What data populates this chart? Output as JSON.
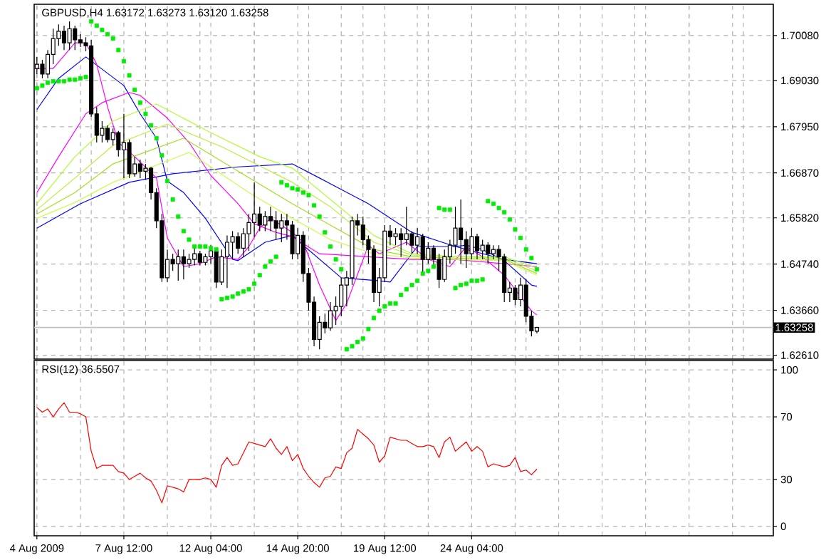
{
  "chart_data": [
    {
      "type": "candlestick",
      "title": "GBPUSD,H4  1.63172 1.63273 1.63120 1.63258",
      "categories": [
        null,
        null,
        null,
        null,
        null,
        null,
        null,
        null,
        null,
        null,
        null,
        null,
        null,
        null,
        null,
        null,
        null,
        null,
        null,
        null,
        null,
        null,
        null,
        null,
        null,
        null,
        null,
        null,
        null,
        null,
        null,
        null,
        null,
        null,
        null,
        null,
        null,
        null,
        null,
        null,
        null,
        null,
        null,
        null,
        null,
        null,
        null,
        null,
        null,
        null,
        null,
        null,
        null,
        null,
        null,
        null,
        null,
        null,
        null,
        null,
        null,
        null,
        null,
        null,
        null,
        null,
        null,
        null,
        null,
        null,
        null,
        null,
        null,
        null,
        null,
        null,
        null,
        null,
        null,
        null,
        null,
        null,
        null,
        null,
        null,
        null,
        null,
        null,
        null,
        null,
        null,
        null,
        null,
        null,
        null,
        null,
        null,
        null,
        null,
        null,
        null,
        null,
        null,
        null,
        null,
        null,
        null,
        null,
        null,
        null,
        null,
        null,
        null,
        null,
        null,
        null,
        null,
        null,
        null,
        null,
        null,
        null,
        null,
        null,
        null,
        null,
        null,
        null,
        null,
        null,
        null,
        null,
        null,
        null,
        null,
        null
      ],
      "tick_labels": "y",
      "ylim": [
        1.6252,
        1.7081
      ],
      "yticks": [
        {
          "value": 1.6261,
          "label": "1.62610"
        },
        {
          "value": 1.6366,
          "label": "1.63660"
        },
        {
          "value": 1.6474,
          "label": "1.64740"
        },
        {
          "value": 1.6582,
          "label": "1.65820"
        },
        {
          "value": 1.6687,
          "label": "1.66870"
        },
        {
          "value": 1.6795,
          "label": "1.67950"
        },
        {
          "value": 1.6903,
          "label": "1.69030"
        },
        {
          "value": 1.7008,
          "label": "1.70080"
        }
      ],
      "grid": true,
      "ref_lines": [
        {
          "axis": "y",
          "value": 1.63258,
          "label": "1.63258",
          "color": "#c0c0c0"
        }
      ],
      "ohlc": [
        [
          1.6931,
          1.6958,
          1.6918,
          1.6941
        ],
        [
          1.6941,
          1.6951,
          1.6908,
          1.6918
        ],
        [
          1.6918,
          1.6974,
          1.6908,
          1.6964
        ],
        [
          1.6964,
          1.7024,
          1.6941,
          1.7001
        ],
        [
          1.7001,
          1.7034,
          1.6984,
          1.7018
        ],
        [
          1.7018,
          1.7031,
          1.6974,
          1.6991
        ],
        [
          1.6991,
          1.7041,
          1.6974,
          1.7024
        ],
        [
          1.7024,
          1.7031,
          1.6974,
          1.6998
        ],
        [
          1.6998,
          1.7011,
          1.6981,
          1.6991
        ],
        [
          1.6991,
          1.7004,
          1.6971,
          1.6984
        ],
        [
          1.6984,
          1.6998,
          1.6818,
          1.6825
        ],
        [
          1.6825,
          1.6841,
          1.6758,
          1.6775
        ],
        [
          1.6775,
          1.6808,
          1.6758,
          1.6791
        ],
        [
          1.6791,
          1.6798,
          1.6758,
          1.6765
        ],
        [
          1.6765,
          1.6791,
          1.6751,
          1.6781
        ],
        [
          1.6781,
          1.6785,
          1.6725,
          1.6741
        ],
        [
          1.6741,
          1.6825,
          1.6675,
          1.6758
        ],
        [
          1.6758,
          1.6765,
          1.6675,
          1.6685
        ],
        [
          1.6685,
          1.6725,
          1.6678,
          1.6708
        ],
        [
          1.6708,
          1.6718,
          1.6675,
          1.6691
        ],
        [
          1.6691,
          1.6708,
          1.6671,
          1.6698
        ],
        [
          1.6698,
          1.6701,
          1.6625,
          1.6641
        ],
        [
          1.6641,
          1.6651,
          1.6558,
          1.6575
        ],
        [
          1.6575,
          1.6591,
          1.6432,
          1.6442
        ],
        [
          1.6442,
          1.6508,
          1.6432,
          1.6485
        ],
        [
          1.6485,
          1.6498,
          1.6458,
          1.6475
        ],
        [
          1.6475,
          1.6508,
          1.6435,
          1.6491
        ],
        [
          1.6491,
          1.6508,
          1.6438,
          1.6475
        ],
        [
          1.6475,
          1.6498,
          1.6465,
          1.6485
        ],
        [
          1.6485,
          1.6518,
          1.6471,
          1.6498
        ],
        [
          1.6498,
          1.6505,
          1.6471,
          1.6478
        ],
        [
          1.6478,
          1.6498,
          1.6471,
          1.6491
        ],
        [
          1.6491,
          1.6518,
          1.6475,
          1.6505
        ],
        [
          1.6505,
          1.6511,
          1.6418,
          1.6432
        ],
        [
          1.6432,
          1.6508,
          1.6425,
          1.6491
        ],
        [
          1.6491,
          1.6541,
          1.6418,
          1.6525
        ],
        [
          1.6525,
          1.6551,
          1.6485,
          1.6538
        ],
        [
          1.6538,
          1.6548,
          1.6498,
          1.6511
        ],
        [
          1.6511,
          1.6558,
          1.6491,
          1.6545
        ],
        [
          1.6545,
          1.6591,
          1.6505,
          1.6571
        ],
        [
          1.6571,
          1.6665,
          1.6538,
          1.6591
        ],
        [
          1.6591,
          1.6608,
          1.6551,
          1.6565
        ],
        [
          1.6565,
          1.6598,
          1.6551,
          1.6585
        ],
        [
          1.6585,
          1.6608,
          1.6551,
          1.6575
        ],
        [
          1.6575,
          1.6598,
          1.6531,
          1.6558
        ],
        [
          1.6558,
          1.6591,
          1.6525,
          1.6575
        ],
        [
          1.6575,
          1.6591,
          1.6531,
          1.6565
        ],
        [
          1.6565,
          1.6575,
          1.6485,
          1.6498
        ],
        [
          1.6498,
          1.6558,
          1.6485,
          1.6541
        ],
        [
          1.6541,
          1.6551,
          1.6432,
          1.6452
        ],
        [
          1.6452,
          1.6465,
          1.6365,
          1.6385
        ],
        [
          1.6385,
          1.6398,
          1.6282,
          1.6298
        ],
        [
          1.6298,
          1.6352,
          1.6275,
          1.6338
        ],
        [
          1.6338,
          1.6358,
          1.6312,
          1.6325
        ],
        [
          1.6325,
          1.6385,
          1.6318,
          1.6365
        ],
        [
          1.6365,
          1.6398,
          1.6332,
          1.6375
        ],
        [
          1.6375,
          1.6442,
          1.6352,
          1.6425
        ],
        [
          1.6425,
          1.6458,
          1.6375,
          1.6442
        ],
        [
          1.6442,
          1.6585,
          1.6425,
          1.6575
        ],
        [
          1.6575,
          1.6591,
          1.6541,
          1.6565
        ],
        [
          1.6565,
          1.6585,
          1.6518,
          1.6531
        ],
        [
          1.6531,
          1.6541,
          1.6475,
          1.6508
        ],
        [
          1.6508,
          1.6518,
          1.6385,
          1.6408
        ],
        [
          1.6408,
          1.6465,
          1.6375,
          1.6442
        ],
        [
          1.6442,
          1.6565,
          1.6432,
          1.6551
        ],
        [
          1.6551,
          1.6565,
          1.6518,
          1.6538
        ],
        [
          1.6538,
          1.6558,
          1.6518,
          1.6545
        ],
        [
          1.6545,
          1.6558,
          1.6491,
          1.6531
        ],
        [
          1.6531,
          1.6608,
          1.6518,
          1.6545
        ],
        [
          1.6545,
          1.6551,
          1.6498,
          1.6518
        ],
        [
          1.6518,
          1.6558,
          1.6498,
          1.6538
        ],
        [
          1.6538,
          1.6545,
          1.6452,
          1.6485
        ],
        [
          1.6485,
          1.6525,
          1.6475,
          1.6511
        ],
        [
          1.6511,
          1.6518,
          1.6465,
          1.6485
        ],
        [
          1.6485,
          1.6498,
          1.6418,
          1.6438
        ],
        [
          1.6438,
          1.6508,
          1.6432,
          1.6491
        ],
        [
          1.6491,
          1.6531,
          1.6475,
          1.6518
        ],
        [
          1.6518,
          1.6608,
          1.6498,
          1.6558
        ],
        [
          1.6558,
          1.6625,
          1.6475,
          1.6531
        ],
        [
          1.6531,
          1.6551,
          1.6465,
          1.6498
        ],
        [
          1.6498,
          1.6558,
          1.6485,
          1.6538
        ],
        [
          1.6538,
          1.6545,
          1.6485,
          1.6505
        ],
        [
          1.6505,
          1.6531,
          1.6485,
          1.6518
        ],
        [
          1.6518,
          1.6525,
          1.6475,
          1.6498
        ],
        [
          1.6498,
          1.6518,
          1.6485,
          1.6508
        ],
        [
          1.6508,
          1.6518,
          1.6458,
          1.6491
        ],
        [
          1.6491,
          1.6498,
          1.6385,
          1.6408
        ],
        [
          1.6408,
          1.6432,
          1.6385,
          1.6418
        ],
        [
          1.6418,
          1.6425,
          1.6378,
          1.6391
        ],
        [
          1.6391,
          1.6442,
          1.6375,
          1.6425
        ],
        [
          1.6425,
          1.6438,
          1.6338,
          1.6352
        ],
        [
          1.6352,
          1.6365,
          1.6305,
          1.6318
        ],
        [
          1.63172,
          1.63273,
          1.6312,
          1.63258
        ],
        null,
        null,
        null,
        null,
        null,
        null,
        null,
        null,
        null,
        null,
        null,
        null,
        null,
        null,
        null,
        null,
        null,
        null,
        null,
        null,
        null,
        null,
        null,
        null,
        null,
        null,
        null,
        null,
        null,
        null,
        null,
        null,
        null,
        null,
        null,
        null,
        null,
        null,
        null,
        null,
        null,
        null,
        null
      ],
      "series": [
        {
          "type": "line",
          "color": "#0000ff",
          "values": [
            1.6835,
            null,
            null,
            null,
            1.6908,
            null,
            null,
            null,
            null,
            1.6958,
            null,
            null,
            null,
            null,
            null,
            null,
            1.6891,
            null,
            null,
            1.6825,
            null,
            null,
            1.6768,
            null,
            1.6668,
            null,
            null,
            1.6641,
            null,
            null,
            null,
            1.6581,
            null,
            null,
            null,
            null,
            1.6485,
            1.6482,
            null,
            null,
            null,
            null,
            1.6525,
            null,
            null,
            null,
            null,
            1.6541,
            null,
            1.6518,
            null,
            null,
            null,
            null,
            null,
            null,
            1.6442,
            null,
            null,
            null,
            null,
            null,
            null,
            1.6435,
            null,
            1.6432,
            null,
            null,
            null,
            null,
            1.6515,
            null,
            null,
            null,
            null,
            null,
            null,
            1.6515,
            null,
            1.6518,
            null,
            null,
            1.6508,
            null,
            null,
            null,
            1.6482,
            null,
            null,
            null,
            null,
            1.6425,
            1.6422,
            null,
            null,
            null,
            null,
            null,
            null,
            null,
            null,
            null,
            null,
            null,
            null,
            null,
            null,
            null,
            null,
            null,
            null,
            null,
            null,
            null,
            null,
            null,
            null,
            null,
            null,
            null,
            null,
            null,
            null,
            null,
            null,
            null,
            null,
            null,
            null,
            null,
            null,
            null,
            null,
            null,
            null,
            null
          ]
        },
        {
          "type": "line",
          "color": "#0000ff",
          "values": [
            1.6558,
            null,
            null,
            null,
            null,
            null,
            null,
            null,
            1.6615,
            null,
            null,
            null,
            null,
            null,
            null,
            null,
            null,
            1.6665,
            null,
            null,
            null,
            null,
            null,
            null,
            null,
            1.6685,
            null,
            null,
            null,
            null,
            null,
            null,
            null,
            null,
            null,
            null,
            null,
            1.6701,
            null,
            null,
            null,
            null,
            null,
            null,
            null,
            null,
            null,
            1.6708,
            null,
            null,
            null,
            null,
            1.6675,
            null,
            null,
            null,
            null,
            null,
            null,
            null,
            null,
            1.6615,
            null,
            null,
            null,
            null,
            null,
            null,
            null,
            1.6548,
            null,
            null,
            null,
            null,
            null,
            null,
            null,
            1.6515,
            null,
            null,
            null,
            null,
            null,
            null,
            null,
            null,
            1.6485,
            null,
            null,
            null,
            null,
            null,
            1.6475,
            null,
            null,
            null,
            null,
            null,
            null,
            null,
            null,
            null,
            null,
            null,
            null,
            null,
            null,
            null,
            null,
            null,
            null,
            null,
            null,
            null,
            null,
            null,
            null,
            null,
            null,
            null,
            null,
            null,
            null,
            null,
            null,
            null,
            null,
            null,
            null,
            null,
            null,
            null,
            null,
            null,
            null,
            null
          ]
        },
        {
          "type": "line",
          "color": "#ff00ff",
          "values": [
            1.6931,
            null,
            null,
            1.6931,
            null,
            null,
            null,
            1.6991,
            null,
            1.6991,
            null,
            1.6941,
            null,
            1.6841,
            null,
            1.6758,
            null,
            null,
            1.6725,
            null,
            null,
            null,
            1.6675,
            null,
            1.6535,
            null,
            null,
            1.6468,
            null,
            null,
            1.6475,
            null,
            null,
            1.6491,
            null,
            null,
            null,
            1.6485,
            null,
            1.6515,
            null,
            1.6558,
            null,
            1.6581,
            null,
            null,
            null,
            1.6548,
            null,
            1.6525,
            null,
            null,
            1.6425,
            null,
            null,
            1.6342,
            null,
            1.6382,
            null,
            null,
            null,
            1.6518,
            null,
            1.6498,
            null,
            null,
            null,
            null,
            1.6525,
            null,
            null,
            null,
            1.6485,
            null,
            null,
            null,
            1.6468,
            null,
            null,
            1.6515,
            null,
            null,
            1.6491,
            null,
            null,
            null,
            1.6448,
            null,
            null,
            null,
            null,
            1.6365,
            1.6355,
            null,
            null,
            null,
            null,
            null,
            null,
            null,
            null,
            null,
            null,
            null,
            null,
            null,
            null,
            null,
            null,
            null,
            null,
            null,
            null,
            null,
            null,
            null,
            null,
            null,
            null,
            null,
            null,
            null,
            null,
            null,
            null,
            null,
            null,
            null,
            null,
            null,
            null,
            null,
            null,
            null,
            null,
            null
          ]
        },
        {
          "type": "line",
          "color": "#ff00ff",
          "values": [
            1.6641,
            null,
            null,
            null,
            1.6725,
            null,
            null,
            null,
            null,
            1.6825,
            null,
            null,
            1.6851,
            null,
            null,
            null,
            null,
            1.6875,
            null,
            1.6868,
            null,
            null,
            null,
            null,
            1.6815,
            null,
            null,
            null,
            1.6758,
            null,
            null,
            null,
            1.6681,
            null,
            null,
            null,
            null,
            1.6615,
            null,
            null,
            1.6568,
            null,
            null,
            null,
            1.6548,
            null,
            null,
            1.6538,
            null,
            null,
            null,
            null,
            1.6498,
            null,
            null,
            null,
            null,
            null,
            null,
            null,
            null,
            1.6491,
            null,
            null,
            null,
            null,
            null,
            null,
            null,
            1.6485,
            null,
            null,
            null,
            null,
            null,
            null,
            null,
            1.6485,
            null,
            null,
            null,
            null,
            null,
            null,
            null,
            null,
            null,
            null,
            null,
            null,
            null,
            null,
            1.6468,
            null,
            null,
            null,
            null,
            null,
            null,
            null,
            null,
            null,
            null,
            null,
            null,
            null,
            null,
            null,
            null,
            null,
            null,
            null,
            null,
            null,
            null,
            null,
            null,
            null,
            null,
            null,
            null,
            null,
            null,
            null,
            null,
            null,
            null,
            null,
            null,
            null,
            null,
            null,
            null,
            null,
            null,
            null
          ]
        },
        {
          "type": "line",
          "color": "#adff2f",
          "values": [
            1.6615,
            null,
            null,
            null,
            null,
            null,
            null,
            1.6725,
            null,
            null,
            null,
            null,
            null,
            null,
            1.6808,
            null,
            null,
            null,
            null,
            null,
            null,
            null,
            1.6848,
            null,
            null,
            null,
            null,
            null,
            null,
            null,
            null,
            null,
            1.6781,
            null,
            null,
            null,
            null,
            null,
            null,
            null,
            null,
            1.6725,
            null,
            null,
            null,
            null,
            null,
            1.6698,
            null,
            null,
            null,
            null,
            null,
            null,
            1.6625,
            null,
            null,
            null,
            null,
            null,
            null,
            null,
            1.6541,
            null,
            null,
            null,
            null,
            null,
            null,
            1.6498,
            null,
            null,
            null,
            null,
            null,
            null,
            null,
            1.6491,
            null,
            null,
            null,
            null,
            null,
            null,
            null,
            null,
            1.6491,
            null,
            null,
            null,
            null,
            null,
            1.6465,
            null,
            null,
            null,
            null,
            null,
            null,
            null,
            null,
            null,
            null,
            null,
            null,
            null,
            null,
            null,
            null,
            null,
            null,
            null,
            null,
            null,
            null,
            null,
            null,
            null,
            null,
            null,
            null,
            null,
            null,
            null,
            null,
            null,
            null,
            null,
            null,
            null,
            null,
            null,
            null,
            null,
            null,
            null
          ]
        },
        {
          "type": "line",
          "color": "#b8f03c",
          "values": [
            1.6601,
            null,
            null,
            null,
            null,
            null,
            null,
            1.6675,
            null,
            null,
            null,
            null,
            null,
            null,
            1.6751,
            null,
            null,
            null,
            null,
            null,
            null,
            null,
            null,
            null,
            1.6801,
            null,
            null,
            null,
            null,
            null,
            null,
            null,
            null,
            null,
            1.6748,
            null,
            null,
            null,
            null,
            null,
            null,
            null,
            null,
            null,
            null,
            null,
            null,
            1.6665,
            null,
            null,
            null,
            null,
            null,
            null,
            1.6608,
            null,
            null,
            null,
            null,
            null,
            null,
            null,
            1.6525,
            null,
            null,
            null,
            null,
            null,
            null,
            1.6495,
            null,
            null,
            null,
            null,
            null,
            null,
            null,
            1.6491,
            null,
            null,
            null,
            null,
            null,
            null,
            null,
            null,
            1.6488,
            null,
            null,
            null,
            null,
            null,
            1.6458,
            null,
            null,
            null,
            null,
            null,
            null,
            null,
            null,
            null,
            null,
            null,
            null,
            null,
            null,
            null,
            null,
            null,
            null,
            null,
            null,
            null,
            null,
            null,
            null,
            null,
            null,
            null,
            null,
            null,
            null,
            null,
            null,
            null,
            null,
            null,
            null,
            null,
            null,
            null,
            null,
            null,
            null,
            null
          ]
        },
        {
          "type": "line",
          "color": "#a0e020",
          "values": [
            1.6591,
            null,
            null,
            null,
            null,
            null,
            null,
            1.6641,
            null,
            null,
            null,
            null,
            null,
            null,
            1.6708,
            null,
            null,
            null,
            null,
            null,
            null,
            null,
            null,
            null,
            null,
            null,
            null,
            1.6768,
            null,
            null,
            null,
            null,
            null,
            null,
            null,
            null,
            null,
            1.6691,
            null,
            null,
            null,
            null,
            null,
            null,
            null,
            null,
            null,
            1.6615,
            null,
            null,
            null,
            null,
            null,
            null,
            1.6565,
            null,
            null,
            null,
            null,
            null,
            null,
            null,
            1.6508,
            null,
            null,
            null,
            null,
            null,
            null,
            1.6491,
            null,
            null,
            null,
            null,
            null,
            null,
            null,
            1.6488,
            null,
            null,
            null,
            null,
            null,
            null,
            null,
            null,
            1.6485,
            null,
            null,
            null,
            null,
            null,
            1.6452,
            null,
            null,
            null,
            null,
            null,
            null,
            null,
            null,
            null,
            null,
            null,
            null,
            null,
            null,
            null,
            null,
            null,
            null,
            null,
            null,
            null,
            null,
            null,
            null,
            null,
            null,
            null,
            null,
            null,
            null,
            null,
            null,
            null,
            null,
            null,
            null,
            null,
            null,
            null,
            null,
            null,
            null,
            null
          ]
        },
        {
          "type": "line",
          "color": "#c8ff50",
          "values": [
            1.6581,
            null,
            null,
            null,
            null,
            null,
            null,
            1.6618,
            null,
            null,
            null,
            null,
            null,
            null,
            1.6665,
            null,
            null,
            null,
            null,
            null,
            null,
            null,
            null,
            null,
            null,
            null,
            null,
            null,
            1.6735,
            null,
            null,
            null,
            null,
            null,
            null,
            null,
            null,
            null,
            null,
            1.6641,
            null,
            null,
            null,
            null,
            null,
            null,
            null,
            1.6581,
            null,
            null,
            null,
            null,
            null,
            null,
            1.6531,
            null,
            null,
            null,
            null,
            null,
            null,
            null,
            1.6498,
            null,
            null,
            null,
            null,
            null,
            null,
            1.6488,
            null,
            null,
            null,
            null,
            null,
            null,
            null,
            1.6485,
            null,
            null,
            null,
            null,
            null,
            null,
            null,
            null,
            1.6482,
            null,
            null,
            null,
            null,
            null,
            1.6448,
            null,
            null,
            null,
            null,
            null,
            null,
            null,
            null,
            null,
            null,
            null,
            null,
            null,
            null,
            null,
            null,
            null,
            null,
            null,
            null,
            null,
            null,
            null,
            null,
            null,
            null,
            null,
            null,
            null,
            null,
            null,
            null,
            null,
            null,
            null,
            null,
            null,
            null,
            null,
            null,
            null,
            null,
            null
          ]
        },
        {
          "type": "scatter",
          "color": "#00ee00",
          "marker": "square",
          "values": [
            1.6885,
            1.6891,
            1.6898,
            1.6901,
            1.6901,
            1.6901,
            1.6905,
            1.6905,
            1.6908,
            1.6911,
            1.7041,
            1.7031,
            1.7021,
            1.7011,
            1.7001,
            1.6974,
            1.6948,
            1.6915,
            1.6881,
            1.6851,
            1.6825,
            1.6798,
            1.6768,
            1.6728,
            1.6668,
            1.6625,
            1.6585,
            1.6551,
            1.6531,
            1.6515,
            1.6515,
            1.6515,
            1.6511,
            1.6508,
            1.6392,
            1.6395,
            1.6398,
            1.6405,
            1.641,
            1.6415,
            1.6428,
            1.6448,
            1.6468,
            1.648,
            1.6491,
            1.6665,
            1.6658,
            1.6651,
            1.6648,
            1.6641,
            1.6635,
            1.6611,
            1.6585,
            1.6548,
            1.6515,
            1.6485,
            1.6462,
            1.6275,
            1.6282,
            1.6292,
            1.63,
            1.6322,
            1.6348,
            1.6365,
            1.6375,
            1.6382,
            1.6382,
            1.6402,
            1.6415,
            1.6425,
            1.6435,
            1.6452,
            1.6458,
            1.6468,
            1.6605,
            1.6601,
            1.6601,
            1.6418,
            1.6425,
            1.6428,
            1.6435,
            1.6435,
            1.6438,
            1.6621,
            1.6615,
            1.6605,
            1.6595,
            1.6578,
            1.6555,
            1.6535,
            1.6508,
            1.6488,
            1.6462,
            null,
            null,
            null,
            null,
            null,
            null,
            null,
            null,
            null,
            null,
            null,
            null,
            null,
            null,
            null,
            null,
            null,
            null,
            null,
            null,
            null,
            null,
            null,
            null,
            null,
            null,
            null,
            null,
            null,
            null,
            null,
            null,
            null,
            null,
            null,
            null,
            null,
            null,
            null,
            null,
            null,
            null,
            null
          ]
        }
      ]
    },
    {
      "type": "line",
      "title": "RSI(12) 36.5507",
      "categories": [
        "4 Aug 2009",
        null,
        null,
        null,
        null,
        null,
        null,
        null,
        null,
        null,
        null,
        null,
        null,
        null,
        null,
        null,
        "7 Aug 12:00",
        null,
        null,
        null,
        null,
        null,
        null,
        null,
        null,
        null,
        null,
        null,
        null,
        null,
        null,
        null,
        "12 Aug 04:00",
        null,
        null,
        null,
        null,
        null,
        null,
        null,
        null,
        null,
        null,
        null,
        null,
        null,
        null,
        null,
        "14 Aug 20:00",
        null,
        null,
        null,
        null,
        null,
        null,
        null,
        null,
        null,
        null,
        null,
        null,
        null,
        null,
        null,
        "19 Aug 12:00",
        null,
        null,
        null,
        null,
        null,
        null,
        null,
        null,
        null,
        null,
        null,
        null,
        null,
        null,
        null,
        "24 Aug 04:00",
        null,
        null,
        null,
        null,
        null,
        null,
        null,
        null,
        null,
        null,
        null,
        null,
        null,
        null,
        null,
        null,
        null,
        null,
        null,
        null,
        null,
        null,
        null,
        null,
        null,
        null,
        null,
        null,
        null,
        null,
        null,
        null,
        null,
        null,
        null,
        null,
        null,
        null,
        null,
        null,
        null,
        null,
        null,
        null,
        null,
        null,
        null,
        null,
        null,
        null,
        null,
        null,
        null,
        null,
        null
      ],
      "ylim": [
        -6,
        106
      ],
      "yticks": [
        {
          "value": 0,
          "label": "0"
        },
        {
          "value": 30,
          "label": "30"
        },
        {
          "value": 70,
          "label": "70"
        },
        {
          "value": 100,
          "label": "100"
        }
      ],
      "grid": true,
      "color": "#ff0000",
      "values": [
        76,
        73,
        75,
        70,
        75,
        79,
        73,
        73,
        72,
        70,
        48,
        37,
        39,
        39,
        39,
        35,
        34,
        30,
        32,
        34,
        31,
        29,
        23,
        15,
        26,
        25,
        24,
        22,
        30,
        30,
        30,
        31,
        30,
        25,
        39,
        44,
        39,
        40,
        47,
        54,
        53,
        52,
        51,
        56,
        50,
        46,
        51,
        42,
        46,
        37,
        32,
        28,
        25,
        31,
        32,
        38,
        37,
        47,
        50,
        62,
        59,
        56,
        52,
        41,
        45,
        57,
        56,
        55,
        55,
        53,
        51,
        51,
        52,
        51,
        44,
        54,
        57,
        48,
        51,
        54,
        48,
        51,
        48,
        38,
        40,
        39,
        38,
        39,
        44,
        35,
        36,
        33,
        36.5507,
        null,
        null,
        null,
        null,
        null,
        null,
        null,
        null,
        null,
        null,
        null,
        null,
        null,
        null,
        null,
        null,
        null,
        null,
        null,
        null,
        null,
        null,
        null,
        null,
        null,
        null,
        null,
        null,
        null,
        null,
        null,
        null,
        null,
        null,
        null,
        null,
        null,
        null,
        null,
        null,
        null,
        null,
        null
      ]
    }
  ]
}
